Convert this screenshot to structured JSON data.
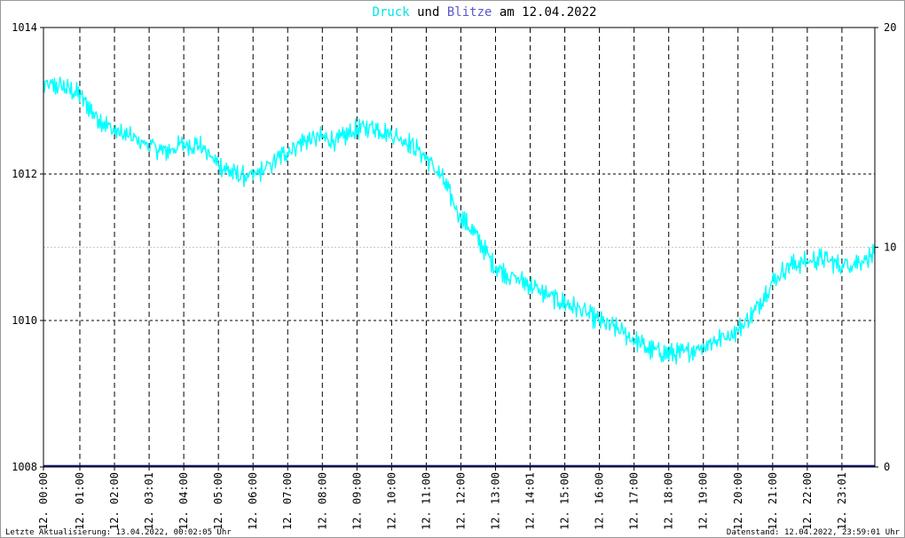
{
  "title": {
    "part1": "Druck",
    "part2": " und ",
    "part3": "Blitze",
    "part4": " am 12.04.2022",
    "color1": "#00e5e5",
    "color2": "#000000",
    "color3": "#5e57c7",
    "color4": "#000000"
  },
  "footer": {
    "left": "Letzte Aktualisierung: 13.04.2022, 00:02:05 Uhr",
    "right": "Datenstand: 12.04.2022, 23:59:01 Uhr"
  },
  "chart_data": {
    "type": "line",
    "title": "Druck und Blitze am 12.04.2022",
    "grid": true,
    "y_left": {
      "min": 1008,
      "max": 1014,
      "ticks": [
        "1014",
        "1012",
        "1010",
        "1008"
      ]
    },
    "y_right": {
      "min": 0,
      "max": 20,
      "ticks": [
        "20",
        "10",
        "0"
      ]
    },
    "x_range_hours": [
      0,
      24
    ],
    "x_tick_labels": [
      "12. 00:00",
      "12. 01:00",
      "12. 02:00",
      "12. 03:01",
      "12. 04:00",
      "12. 05:00",
      "12. 06:00",
      "12. 07:00",
      "12. 08:00",
      "12. 09:00",
      "12. 10:00",
      "12. 11:00",
      "12. 12:00",
      "12. 13:00",
      "12. 14:01",
      "12. 15:00",
      "12. 16:00",
      "12. 17:00",
      "12. 18:00",
      "12. 19:00",
      "12. 20:00",
      "12. 21:00",
      "12. 22:00",
      "12. 23:01"
    ],
    "series": [
      {
        "name": "Druck",
        "axis": "left",
        "color": "#00ffff",
        "x": [
          0,
          0.5,
          1,
          1.5,
          2,
          2.5,
          3,
          3.5,
          4,
          4.5,
          5,
          5.5,
          6,
          6.5,
          7,
          7.5,
          8,
          8.5,
          9,
          9.5,
          10,
          10.5,
          11,
          11.5,
          12,
          12.5,
          13,
          13.5,
          14,
          14.5,
          15,
          15.5,
          16,
          16.5,
          17,
          17.5,
          18,
          18.5,
          19,
          19.5,
          20,
          20.5,
          21,
          21.5,
          22,
          22.5,
          23,
          23.5,
          24
        ],
        "values": [
          1013.2,
          1013.2,
          1013.1,
          1012.8,
          1012.6,
          1012.5,
          1012.4,
          1012.3,
          1012.4,
          1012.4,
          1012.15,
          1012.0,
          1011.95,
          1012.1,
          1012.3,
          1012.45,
          1012.5,
          1012.45,
          1012.6,
          1012.65,
          1012.55,
          1012.45,
          1012.25,
          1011.95,
          1011.45,
          1011.15,
          1010.75,
          1010.6,
          1010.5,
          1010.35,
          1010.25,
          1010.15,
          1010.0,
          1009.9,
          1009.75,
          1009.6,
          1009.55,
          1009.55,
          1009.65,
          1009.75,
          1009.85,
          1010.1,
          1010.5,
          1010.75,
          1010.8,
          1010.85,
          1010.75,
          1010.8,
          1010.9
        ]
      },
      {
        "name": "Blitze",
        "axis": "right",
        "color": "#1a1a80",
        "x": [
          0,
          24
        ],
        "values": [
          0,
          0
        ]
      }
    ]
  }
}
